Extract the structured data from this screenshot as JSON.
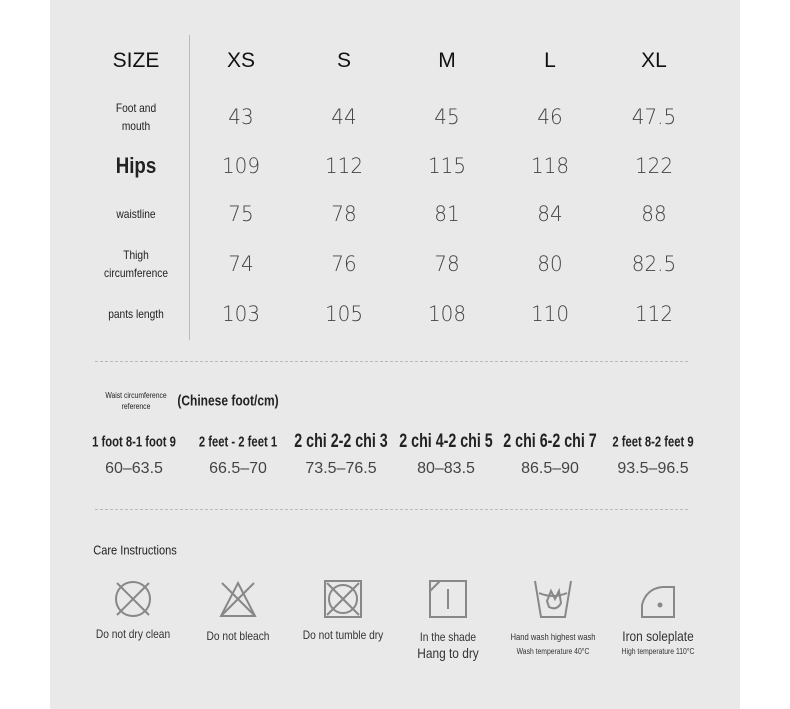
{
  "table": {
    "headers": [
      "SIZE",
      "XS",
      "S",
      "M",
      "L",
      "XL"
    ],
    "rows": [
      {
        "label": "Foot and mouth",
        "values": [
          "43",
          "44",
          "45",
          "46",
          "47.5"
        ]
      },
      {
        "label": "Hips",
        "values": [
          "109",
          "112",
          "115",
          "118",
          "122"
        ]
      },
      {
        "label": "waistline",
        "values": [
          "75",
          "78",
          "81",
          "84",
          "88"
        ]
      },
      {
        "label": "Thigh circumference",
        "values": [
          "74",
          "76",
          "78",
          "80",
          "82.5"
        ]
      },
      {
        "label": "pants length",
        "values": [
          "103",
          "105",
          "108",
          "110",
          "112"
        ]
      }
    ]
  },
  "waist": {
    "title_small": "Waist circumference reference",
    "title_unit": "(Chinese foot/cm)",
    "items": [
      {
        "label": "1 foot 8-1 foot 9",
        "cm": "60–63.5"
      },
      {
        "label": "2 feet - 2 feet 1",
        "cm": "66.5–70"
      },
      {
        "label": "2 chi 2-2 chi 3",
        "cm": "73.5–76.5"
      },
      {
        "label": "2 chi 4-2 chi 5",
        "cm": "80–83.5"
      },
      {
        "label": "2 chi 6-2 chi 7",
        "cm": "86.5–90"
      },
      {
        "label": "2 feet 8-2 feet 9",
        "cm": "93.5–96.5"
      }
    ]
  },
  "care": {
    "title": "Care Instructions",
    "items": [
      {
        "icon": "no-dry-clean-icon",
        "label": "Do not dry clean"
      },
      {
        "icon": "no-bleach-icon",
        "label": "Do not bleach"
      },
      {
        "icon": "no-tumble-dry-icon",
        "label": "Do not tumble dry"
      },
      {
        "icon": "shade-dry-icon",
        "label": "In the shade",
        "label2": "Hang to dry"
      },
      {
        "icon": "hand-wash-icon",
        "label": "Hand wash highest wash",
        "label2": "Wash temperature 40°C"
      },
      {
        "icon": "iron-icon",
        "label": "Iron soleplate",
        "label2": "High temperature 110°C"
      }
    ]
  }
}
